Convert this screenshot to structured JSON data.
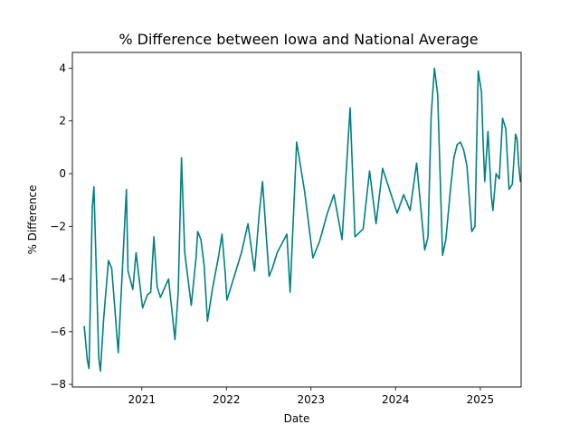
{
  "chart_data": {
    "type": "line",
    "title": "% Difference between Iowa and National Average",
    "xlabel": "Date",
    "ylabel": "% Difference",
    "x_axis_type": "date",
    "xlim": [
      "2020-03-07",
      "2025-06-26"
    ],
    "ylim": [
      -8.1,
      4.6
    ],
    "x_ticks": [
      "2021",
      "2022",
      "2023",
      "2024",
      "2025"
    ],
    "y_ticks": [
      -8,
      -6,
      -4,
      -2,
      0,
      2,
      4
    ],
    "grid": false,
    "legend": "none",
    "series": [
      {
        "name": "",
        "color": "#008080",
        "points": [
          [
            "2020-04-27",
            -5.8
          ],
          [
            "2020-05-11",
            -7.1
          ],
          [
            "2020-05-18",
            -7.4
          ],
          [
            "2020-06-01",
            -1.3
          ],
          [
            "2020-06-08",
            -0.5
          ],
          [
            "2020-06-29",
            -7.0
          ],
          [
            "2020-07-06",
            -7.5
          ],
          [
            "2020-07-20",
            -5.5
          ],
          [
            "2020-08-10",
            -3.3
          ],
          [
            "2020-08-24",
            -3.6
          ],
          [
            "2020-09-21",
            -6.8
          ],
          [
            "2020-10-26",
            -0.6
          ],
          [
            "2020-11-02",
            -3.7
          ],
          [
            "2020-11-23",
            -4.4
          ],
          [
            "2020-12-07",
            -3.0
          ],
          [
            "2021-01-04",
            -5.1
          ],
          [
            "2021-01-25",
            -4.6
          ],
          [
            "2021-02-08",
            -4.5
          ],
          [
            "2021-02-22",
            -2.4
          ],
          [
            "2021-03-08",
            -4.3
          ],
          [
            "2021-03-22",
            -4.7
          ],
          [
            "2021-04-26",
            -4.0
          ],
          [
            "2021-05-24",
            -6.3
          ],
          [
            "2021-06-07",
            -4.5
          ],
          [
            "2021-06-21",
            0.6
          ],
          [
            "2021-07-05",
            -3.0
          ],
          [
            "2021-08-02",
            -5.0
          ],
          [
            "2021-08-23",
            -3.2
          ],
          [
            "2021-08-30",
            -2.2
          ],
          [
            "2021-09-13",
            -2.5
          ],
          [
            "2021-09-27",
            -3.5
          ],
          [
            "2021-10-11",
            -5.6
          ],
          [
            "2021-11-01",
            -4.4
          ],
          [
            "2021-11-29",
            -3.1
          ],
          [
            "2021-12-13",
            -2.3
          ],
          [
            "2021-12-27",
            -3.8
          ],
          [
            "2022-01-03",
            -4.8
          ],
          [
            "2022-01-31",
            -4.0
          ],
          [
            "2022-03-07",
            -3.0
          ],
          [
            "2022-04-04",
            -1.9
          ],
          [
            "2022-05-02",
            -3.7
          ],
          [
            "2022-05-23",
            -1.5
          ],
          [
            "2022-06-06",
            -0.3
          ],
          [
            "2022-07-04",
            -3.9
          ],
          [
            "2022-07-18",
            -3.6
          ],
          [
            "2022-08-08",
            -3.0
          ],
          [
            "2022-09-19",
            -2.3
          ],
          [
            "2022-10-03",
            -4.5
          ],
          [
            "2022-10-31",
            1.2
          ],
          [
            "2022-12-05",
            -0.7
          ],
          [
            "2023-01-09",
            -3.2
          ],
          [
            "2023-02-06",
            -2.6
          ],
          [
            "2023-03-13",
            -1.5
          ],
          [
            "2023-04-10",
            -0.8
          ],
          [
            "2023-05-15",
            -2.5
          ],
          [
            "2023-06-19",
            2.5
          ],
          [
            "2023-07-10",
            -2.4
          ],
          [
            "2023-08-14",
            -2.1
          ],
          [
            "2023-09-11",
            0.1
          ],
          [
            "2023-10-09",
            -1.9
          ],
          [
            "2023-11-06",
            0.2
          ],
          [
            "2024-01-08",
            -1.5
          ],
          [
            "2024-02-05",
            -0.8
          ],
          [
            "2024-03-04",
            -1.4
          ],
          [
            "2024-04-01",
            0.4
          ],
          [
            "2024-05-06",
            -2.9
          ],
          [
            "2024-05-20",
            -2.4
          ],
          [
            "2024-06-03",
            2.2
          ],
          [
            "2024-06-17",
            4.0
          ],
          [
            "2024-07-01",
            3.0
          ],
          [
            "2024-07-22",
            -3.1
          ],
          [
            "2024-08-05",
            -2.5
          ],
          [
            "2024-08-26",
            -0.5
          ],
          [
            "2024-09-09",
            0.6
          ],
          [
            "2024-09-23",
            1.1
          ],
          [
            "2024-10-07",
            1.2
          ],
          [
            "2024-10-21",
            0.9
          ],
          [
            "2024-11-04",
            0.3
          ],
          [
            "2024-11-25",
            -2.2
          ],
          [
            "2024-12-09",
            -2.0
          ],
          [
            "2024-12-23",
            3.9
          ],
          [
            "2025-01-06",
            3.1
          ],
          [
            "2025-01-13",
            1.2
          ],
          [
            "2025-01-20",
            -0.3
          ],
          [
            "2025-02-03",
            1.6
          ],
          [
            "2025-02-17",
            -0.8
          ],
          [
            "2025-02-24",
            -1.4
          ],
          [
            "2025-03-10",
            0.0
          ],
          [
            "2025-03-24",
            -0.2
          ],
          [
            "2025-04-07",
            2.1
          ],
          [
            "2025-04-21",
            1.7
          ],
          [
            "2025-05-05",
            -0.6
          ],
          [
            "2025-05-19",
            -0.4
          ],
          [
            "2025-06-02",
            1.5
          ],
          [
            "2025-06-09",
            1.3
          ],
          [
            "2025-06-16",
            0.3
          ],
          [
            "2025-06-23",
            -0.3
          ]
        ]
      }
    ]
  }
}
